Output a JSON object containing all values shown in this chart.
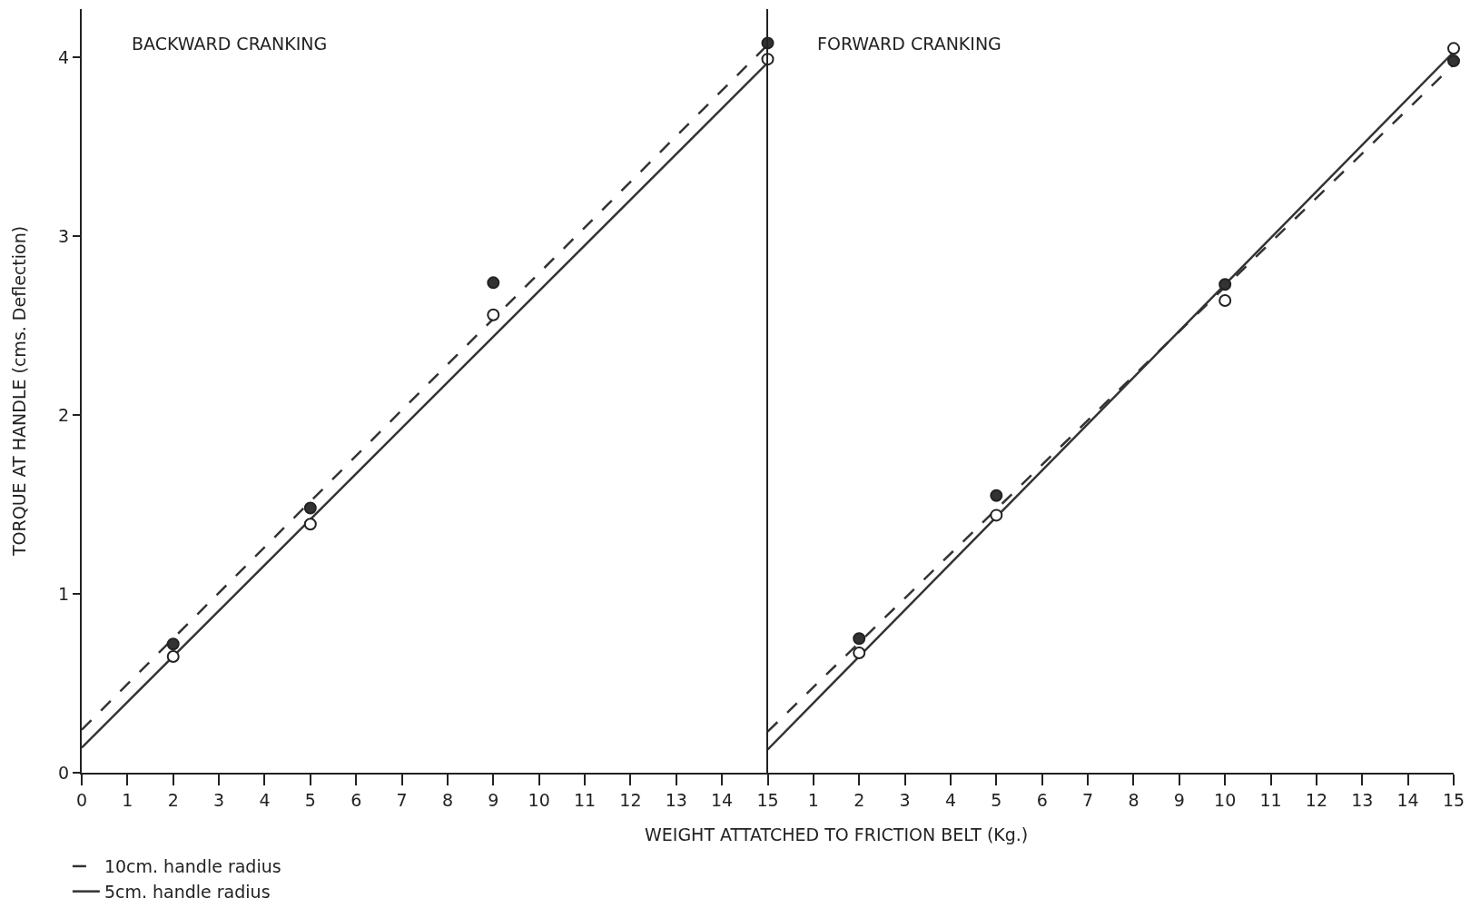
{
  "chart_data": [
    {
      "type": "line",
      "title": "BACKWARD CRANKING",
      "ylabel": "TORQUE AT HANDLE (cms. Deflection)",
      "xlabel": "WEIGHT ATTATCHED TO FRICTION BELT (Kg.)",
      "xlim": [
        0,
        15
      ],
      "xticks": [
        0,
        1,
        2,
        3,
        4,
        5,
        6,
        7,
        8,
        9,
        10,
        11,
        12,
        13,
        14,
        15
      ],
      "ylim": [
        0,
        4.27
      ],
      "yticks": [
        0,
        1,
        2,
        3,
        4
      ],
      "grid": false,
      "legend": "bottom left",
      "series": [
        {
          "name": "10cm. handle radius",
          "line_style": "dashed",
          "color": "#333333",
          "x": [
            0,
            15
          ],
          "values": [
            0.24,
            4.07
          ]
        },
        {
          "name": "5cm. handle radius",
          "line_style": "solid",
          "color": "#333333",
          "x": [
            0,
            15
          ],
          "values": [
            0.14,
            3.97
          ]
        },
        {
          "type": "scatter",
          "marker": "circle",
          "color": "#333333",
          "x": [
            2,
            5,
            9,
            15
          ],
          "values": [
            0.72,
            1.48,
            2.74,
            4.08
          ]
        },
        {
          "type": "scatter",
          "marker": "circle",
          "color": "#ffffff",
          "x": [
            2,
            5,
            9,
            15
          ],
          "values": [
            0.65,
            1.39,
            2.56,
            3.99
          ]
        }
      ]
    },
    {
      "type": "line",
      "title": "FORWARD CRANKING",
      "xlim": [
        0,
        15
      ],
      "xticks": [
        {
          "value": 0,
          "label": null
        },
        1,
        2,
        3,
        4,
        5,
        6,
        7,
        8,
        9,
        10,
        11,
        12,
        13,
        14,
        15
      ],
      "ylim": [
        0,
        4.27
      ],
      "tick_labels": "x",
      "grid": false,
      "legend": false,
      "series": [
        {
          "line_style": "dashed",
          "color": "#333333",
          "x": [
            0,
            15
          ],
          "values": [
            0.23,
            3.96
          ]
        },
        {
          "line_style": "solid",
          "color": "#333333",
          "x": [
            0,
            15
          ],
          "values": [
            0.13,
            4.03
          ]
        },
        {
          "type": "scatter",
          "marker": "circle",
          "color": "#333333",
          "x": [
            2,
            5,
            10,
            15
          ],
          "values": [
            0.75,
            1.55,
            2.73,
            3.98
          ]
        },
        {
          "type": "scatter",
          "marker": "circle",
          "color": "#ffffff",
          "x": [
            2,
            5,
            10,
            15
          ],
          "values": [
            0.67,
            1.44,
            2.64,
            4.05
          ]
        }
      ]
    }
  ]
}
